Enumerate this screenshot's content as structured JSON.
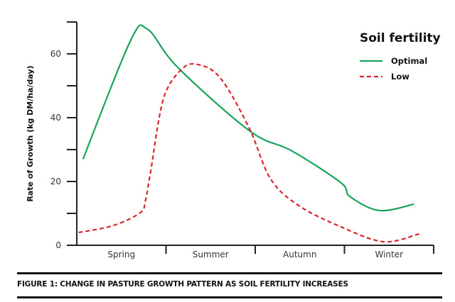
{
  "chart_data": {
    "type": "line",
    "title": "",
    "xlabel": "",
    "ylabel": "Rate of Growth (kg DM/ha/day)",
    "ylim": [
      0,
      70
    ],
    "yticks": [
      0,
      20,
      40,
      60
    ],
    "yminor_ticks": [
      10,
      30,
      50,
      70
    ],
    "xlim": [
      0,
      4
    ],
    "categories": [
      "Spring",
      "Summer",
      "Autumn",
      "Winter"
    ],
    "grid": false,
    "legend": {
      "title": "Soil fertility",
      "placement": "top-right"
    },
    "series": [
      {
        "name": "Optimal",
        "color": "#1aa35a",
        "style": "solid",
        "points": [
          [
            0.07,
            27
          ],
          [
            0.6,
            64
          ],
          [
            0.79,
            67.8
          ],
          [
            1.13,
            55.8
          ],
          [
            1.94,
            35.8
          ],
          [
            2.41,
            29.6
          ],
          [
            2.96,
            19.6
          ],
          [
            3.06,
            15.3
          ],
          [
            3.39,
            10.9
          ],
          [
            3.78,
            12.9
          ]
        ]
      },
      {
        "name": "Low",
        "color": "#d9252b",
        "style": "dashed",
        "points": [
          [
            0.02,
            4
          ],
          [
            0.41,
            6.2
          ],
          [
            0.71,
            10.2
          ],
          [
            0.77,
            14
          ],
          [
            0.83,
            23.5
          ],
          [
            0.97,
            45.8
          ],
          [
            1.17,
            55
          ],
          [
            1.35,
            56.7
          ],
          [
            1.61,
            52.4
          ],
          [
            1.93,
            36.9
          ],
          [
            2.17,
            20.9
          ],
          [
            2.49,
            12.4
          ],
          [
            2.96,
            5.8
          ],
          [
            3.44,
            1.1
          ],
          [
            3.84,
            3.6
          ]
        ]
      }
    ]
  },
  "caption": "FIGURE 1: CHANGE IN PASTURE GROWTH PATTERN AS SOIL FERTILITY INCREASES"
}
